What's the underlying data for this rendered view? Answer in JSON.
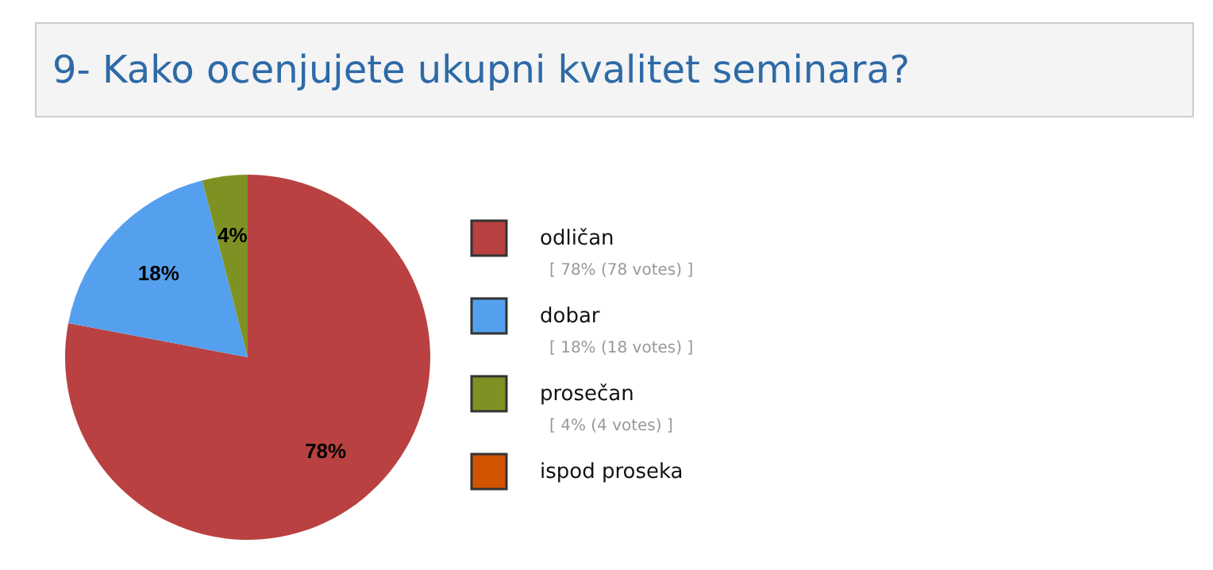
{
  "chart_data": {
    "type": "pie",
    "title": "9- Kako ocenjujete ukupni kvalitet seminara?",
    "categories": [
      "odličan",
      "dobar",
      "prosečan",
      "ispod proseka"
    ],
    "values": [
      78,
      18,
      4,
      0
    ],
    "colors": [
      "#b94141",
      "#54a0ee",
      "#7e9223",
      "#d35400"
    ],
    "value_labels": [
      "78%",
      "18%",
      "4%",
      null
    ],
    "annotations": [
      "[ 78% (78 votes) ]",
      "[ 18% (18 votes) ]",
      "[ 4% (4 votes) ]"
    ],
    "legend": "right"
  }
}
